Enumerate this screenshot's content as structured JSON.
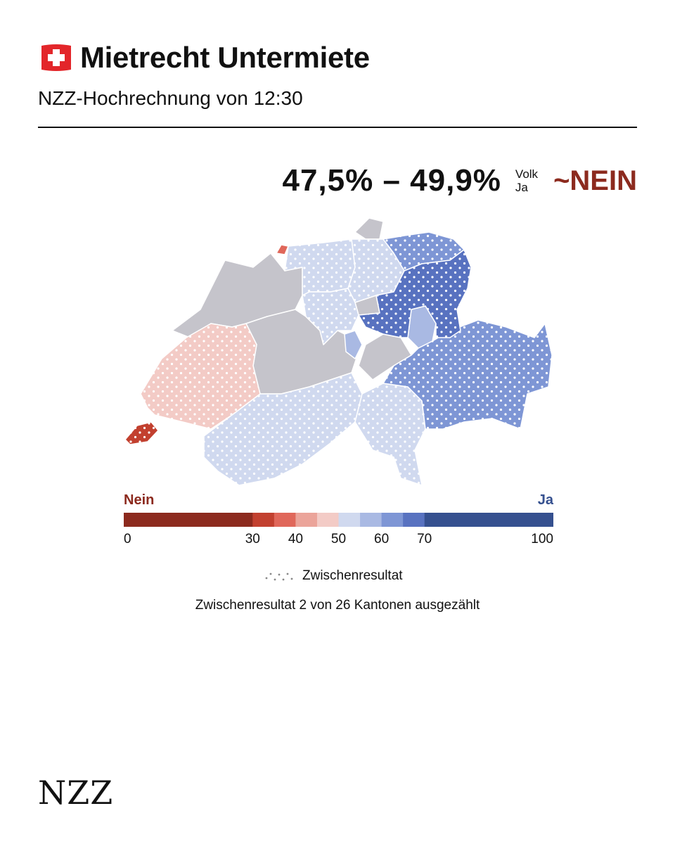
{
  "header": {
    "title": "Mietrecht Untermiete",
    "subtitle": "NZZ-Hochrechnung von 12:30"
  },
  "result": {
    "range": "47,5% – 49,9%",
    "label_top": "Volk",
    "label_bottom": "Ja",
    "verdict": "~NEIN"
  },
  "legend": {
    "nein_label": "Nein",
    "ja_label": "Ja",
    "ticks": [
      "0",
      "30",
      "40",
      "50",
      "60",
      "70",
      "100"
    ],
    "tick_values": [
      0,
      30,
      40,
      50,
      60,
      70,
      100
    ],
    "bins": [
      {
        "from": 0,
        "to": 30,
        "color": "#8c2a1e"
      },
      {
        "from": 30,
        "to": 35,
        "color": "#c2402f"
      },
      {
        "from": 35,
        "to": 40,
        "color": "#e0675a"
      },
      {
        "from": 40,
        "to": 45,
        "color": "#eba49a"
      },
      {
        "from": 45,
        "to": 50,
        "color": "#f3cbc6"
      },
      {
        "from": 50,
        "to": 55,
        "color": "#d0d9ef"
      },
      {
        "from": 55,
        "to": 60,
        "color": "#a9b9e3"
      },
      {
        "from": 60,
        "to": 65,
        "color": "#7e96d5"
      },
      {
        "from": 65,
        "to": 70,
        "color": "#5872c0"
      },
      {
        "from": 70,
        "to": 100,
        "color": "#35508f"
      }
    ],
    "dot_legend": "Zwischenresultat"
  },
  "note": "Zwischenresultat 2 von 26 Kantonen ausgezählt",
  "colors": {
    "no_data": "#c5c4cb",
    "title_red": "#8c2a1e",
    "ja_blue": "#35508f",
    "flag_red": "#e3262a"
  },
  "logo": "NZZ"
}
